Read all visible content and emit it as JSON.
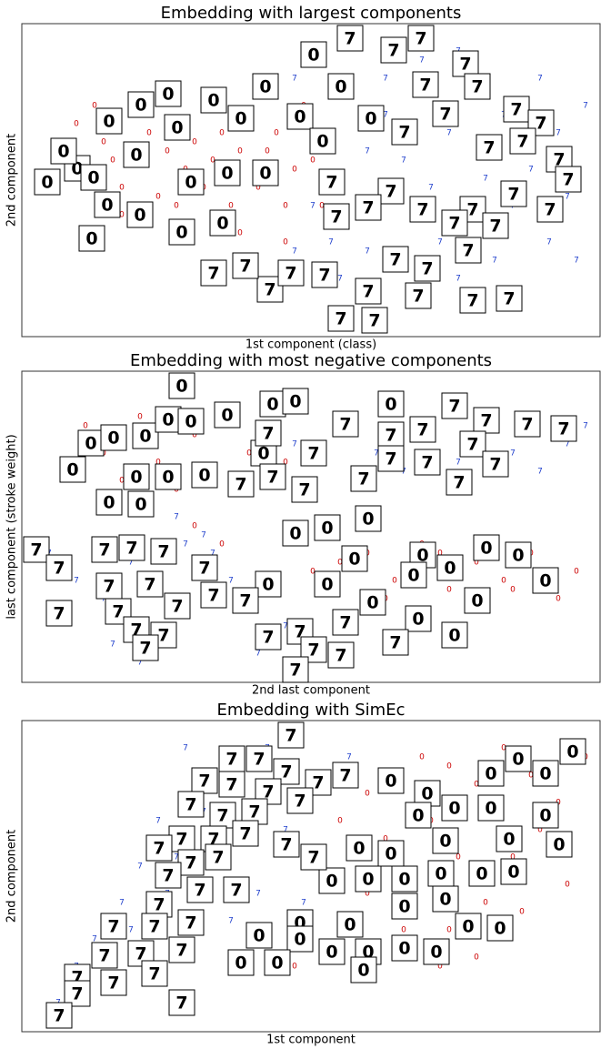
{
  "chart_data": [
    {
      "type": "scatter",
      "title": "Embedding with largest components",
      "x_label": "1st component (class)",
      "y_label": "2nd component",
      "xlim": [
        0,
        636
      ],
      "ylim": [
        344,
        0
      ],
      "series": [
        {
          "name": "0",
          "color": "#cc0000",
          "x": [
            60,
            80,
            90,
            100,
            110,
            120,
            140,
            150,
            160,
            170,
            180,
            190,
            200,
            210,
            220,
            230,
            240,
            250,
            260,
            270,
            280,
            290,
            300,
            310,
            320,
            330,
            140,
            200,
            260,
            110,
            240,
            290
          ],
          "values": [
            110,
            90,
            130,
            150,
            180,
            100,
            120,
            190,
            140,
            200,
            160,
            130,
            180,
            150,
            120,
            200,
            140,
            110,
            180,
            140,
            120,
            200,
            160,
            90,
            150,
            200,
            80,
            90,
            70,
            210,
            230,
            240
          ],
          "thumb_x": [
            28,
            61,
            79,
            96,
            131,
            161,
            94,
            77,
            126,
            171,
            211,
            241,
            268,
            321,
            186,
            226,
            268,
            221,
            176,
            306,
            331,
            351,
            384,
            46,
            130
          ],
          "thumb_y": [
            174,
            159,
            169,
            107,
            89,
            77,
            199,
            236,
            144,
            114,
            84,
            104,
            69,
            34,
            174,
            164,
            164,
            219,
            229,
            102,
            129,
            69,
            104,
            140,
            210
          ]
        },
        {
          "name": "7",
          "color": "#1f3fcc",
          "x": [
            300,
            320,
            340,
            360,
            380,
            400,
            420,
            440,
            450,
            460,
            470,
            480,
            500,
            510,
            520,
            530,
            540,
            560,
            570,
            580,
            590,
            600,
            610,
            620,
            440,
            380,
            350,
            300,
            480,
            400
          ],
          "values": [
            60,
            200,
            240,
            80,
            140,
            60,
            150,
            40,
            180,
            240,
            120,
            280,
            60,
            170,
            260,
            100,
            200,
            160,
            60,
            240,
            120,
            190,
            260,
            90,
            300,
            250,
            280,
            250,
            30,
            100
          ],
          "thumb_x": [
            361,
            439,
            409,
            488,
            444,
            501,
            544,
            571,
            466,
            421,
            514,
            551,
            591,
            601,
            541,
            581,
            496,
            441,
            406,
            341,
            346,
            381,
            411,
            476,
            521,
            491,
            446,
            381,
            436,
            496,
            536,
            351,
            388,
            273,
            296,
            333,
            246,
            211
          ],
          "thumb_y": [
            16,
            16,
            29,
            44,
            67,
            69,
            94,
            109,
            99,
            119,
            136,
            129,
            149,
            171,
            187,
            204,
            204,
            204,
            184,
            174,
            212,
            202,
            259,
            219,
            222,
            249,
            269,
            294,
            299,
            304,
            302,
            324,
            326,
            292,
            274,
            276,
            266,
            274
          ]
        }
      ]
    },
    {
      "type": "scatter",
      "title": "Embedding with most negative components",
      "x_label": "2nd last component",
      "y_label": "last component (stroke weight)",
      "xlim": [
        0,
        636
      ],
      "ylim": [
        342,
        0
      ],
      "series": [
        {
          "name": "0",
          "color": "#cc0000",
          "x": [
            70,
            90,
            110,
            130,
            150,
            170,
            190,
            210,
            230,
            250,
            270,
            290,
            310,
            330,
            350,
            380,
            410,
            440,
            470,
            500,
            530,
            560,
            590,
            610,
            190,
            220,
            320,
            400,
            460,
            540
          ],
          "values": [
            60,
            90,
            120,
            50,
            100,
            130,
            70,
            110,
            40,
            90,
            60,
            100,
            130,
            180,
            210,
            200,
            230,
            190,
            240,
            210,
            230,
            200,
            250,
            220,
            170,
            190,
            220,
            250,
            200,
            240
          ],
          "thumb_x": [
            176,
            56,
            76,
            101,
            136,
            161,
            186,
            226,
            276,
            301,
            406,
            266,
            201,
            161,
            126,
            96,
            131,
            301,
            336,
            381,
            366,
            441,
            471,
            511,
            546,
            576,
            501,
            431,
            386,
            336,
            271,
            476,
            436
          ],
          "thumb_y": [
            16,
            108,
            79,
            73,
            71,
            53,
            55,
            48,
            36,
            33,
            36,
            90,
            114,
            116,
            116,
            144,
            146,
            178,
            172,
            162,
            206,
            202,
            216,
            194,
            202,
            230,
            252,
            224,
            254,
            234,
            234,
            290,
            272
          ]
        },
        {
          "name": "7",
          "color": "#1f3fcc",
          "x": [
            300,
            330,
            360,
            390,
            420,
            450,
            480,
            510,
            540,
            570,
            600,
            620,
            30,
            60,
            90,
            120,
            150,
            180,
            210,
            240,
            270,
            170,
            200,
            230,
            100,
            260,
            290,
            130
          ],
          "values": [
            80,
            100,
            60,
            90,
            110,
            70,
            100,
            60,
            90,
            110,
            80,
            60,
            200,
            230,
            250,
            210,
            240,
            190,
            200,
            260,
            240,
            160,
            180,
            230,
            300,
            310,
            280,
            320
          ],
          "thumb_x": [
            356,
            271,
            321,
            406,
            441,
            476,
            511,
            556,
            596,
            496,
            521,
            446,
            406,
            481,
            311,
            376,
            276,
            241,
            16,
            41,
            91,
            121,
            156,
            201,
            211,
            96,
            141,
            171,
            106,
            41,
            126,
            156,
            136,
            246,
            271,
            306,
            321,
            356,
            351,
            301,
            411
          ],
          "thumb_y": [
            58,
            68,
            90,
            70,
            64,
            38,
            54,
            58,
            63,
            80,
            102,
            100,
            96,
            122,
            130,
            118,
            116,
            124,
            196,
            216,
            196,
            194,
            198,
            216,
            246,
            236,
            234,
            258,
            264,
            266,
            284,
            290,
            304,
            252,
            292,
            286,
            306,
            276,
            312,
            328,
            298
          ]
        }
      ]
    },
    {
      "type": "scatter",
      "title": "Embedding with SimEc",
      "x_label": "1st component",
      "y_label": "2nd component",
      "xlim": [
        0,
        636
      ],
      "ylim": [
        342,
        0
      ],
      "series": [
        {
          "name": "0",
          "color": "#cc0000",
          "x": [
            320,
            350,
            380,
            410,
            440,
            470,
            500,
            530,
            560,
            590,
            620,
            400,
            450,
            480,
            510,
            540,
            570,
            600,
            350,
            380,
            420,
            460,
            500,
            550,
            300,
            330,
            420,
            470
          ],
          "values": [
            160,
            110,
            80,
            60,
            40,
            50,
            70,
            30,
            60,
            90,
            40,
            130,
            110,
            150,
            200,
            150,
            120,
            180,
            230,
            190,
            230,
            270,
            260,
            210,
            270,
            250,
            200,
            230
          ],
          "thumb_x": [
            606,
            546,
            576,
            516,
            446,
            406,
            436,
            476,
            516,
            576,
            591,
            536,
            466,
            406,
            371,
            341,
            381,
            421,
            461,
            506,
            541,
            466,
            421,
            361,
            306,
            261,
            306,
            341,
            381,
            421,
            456,
            491,
            526,
            376,
            281,
            241
          ],
          "thumb_y": [
            34,
            42,
            58,
            58,
            80,
            66,
            104,
            96,
            96,
            104,
            136,
            130,
            132,
            146,
            140,
            176,
            174,
            174,
            168,
            168,
            166,
            196,
            204,
            224,
            222,
            236,
            240,
            254,
            254,
            250,
            254,
            226,
            228,
            274,
            266,
            266
          ]
        },
        {
          "name": "7",
          "color": "#1f3fcc",
          "x": [
            180,
            210,
            240,
            270,
            300,
            330,
            360,
            150,
            200,
            250,
            290,
            130,
            170,
            220,
            110,
            160,
            200,
            80,
            120,
            60,
            90,
            40,
            260,
            310,
            230
          ],
          "values": [
            30,
            60,
            40,
            30,
            50,
            70,
            40,
            110,
            100,
            90,
            120,
            160,
            150,
            140,
            200,
            190,
            180,
            240,
            230,
            270,
            280,
            310,
            190,
            200,
            220
          ],
          "thumb_x": [
            296,
            231,
            261,
            291,
            326,
            356,
            201,
            231,
            271,
            306,
            256,
            221,
            186,
            176,
            211,
            246,
            291,
            186,
            151,
            161,
            216,
            196,
            236,
            151,
            101,
            146,
            186,
            91,
            131,
            176,
            61,
            101,
            146,
            61,
            41,
            176,
            321
          ],
          "thumb_y": [
            16,
            42,
            42,
            56,
            68,
            60,
            66,
            70,
            78,
            88,
            100,
            104,
            92,
            130,
            130,
            124,
            136,
            156,
            140,
            170,
            150,
            186,
            186,
            202,
            226,
            226,
            222,
            258,
            256,
            252,
            282,
            288,
            278,
            300,
            324,
            310,
            150
          ]
        }
      ]
    }
  ]
}
